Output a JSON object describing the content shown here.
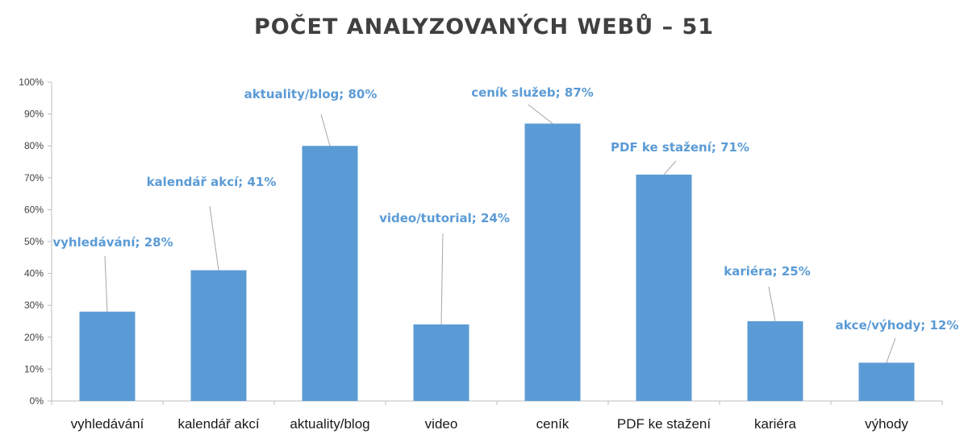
{
  "chart_data": {
    "type": "bar",
    "title": "POČET ANALYZOVANÝCH WEBŮ – 51",
    "categories": [
      "vyhledávání",
      "kalendář akcí",
      "aktuality/blog",
      "video",
      "ceník",
      "PDF ke stažení",
      "kariéra",
      "výhody"
    ],
    "values": [
      28,
      41,
      80,
      24,
      87,
      71,
      25,
      12
    ],
    "data_labels": [
      "vyhledávání; 28%",
      "kalendář akcí; 41%",
      "aktuality/blog; 80%",
      "video/tutorial; 24%",
      "ceník služeb; 87%",
      "PDF ke stažení; 71%",
      "kariéra; 25%",
      "akce/výhody; 12%"
    ],
    "ylim": [
      0,
      100
    ],
    "y_ticks": [
      "0%",
      "10%",
      "20%",
      "30%",
      "40%",
      "50%",
      "60%",
      "70%",
      "80%",
      "90%",
      "100%"
    ],
    "xlabel": "",
    "ylabel": "",
    "grid": false,
    "bar_color": "#5b9bd5",
    "label_color": "#5b9bd5"
  }
}
